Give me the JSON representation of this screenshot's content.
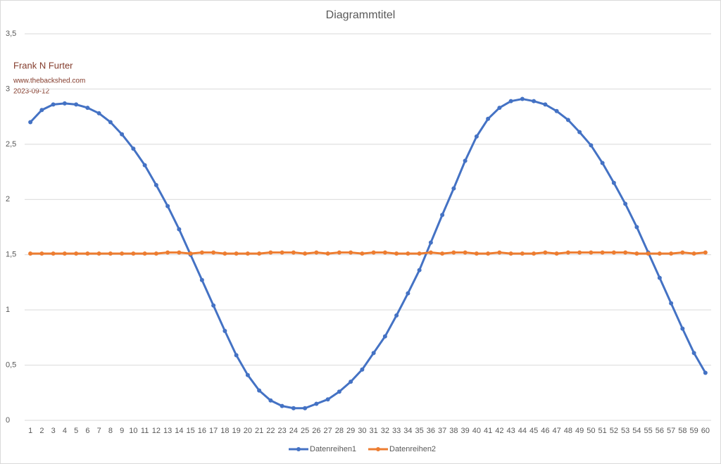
{
  "chart_data": {
    "type": "line",
    "title": "Diagrammtitel",
    "annotations": [
      "Frank N Furter",
      "www.thebackshed.com",
      "2023-09-12"
    ],
    "categories": [
      1,
      2,
      3,
      4,
      5,
      6,
      7,
      8,
      9,
      10,
      11,
      12,
      13,
      14,
      15,
      16,
      17,
      18,
      19,
      20,
      21,
      22,
      23,
      24,
      25,
      26,
      27,
      28,
      29,
      30,
      31,
      32,
      33,
      34,
      35,
      36,
      37,
      38,
      39,
      40,
      41,
      42,
      43,
      44,
      45,
      46,
      47,
      48,
      49,
      50,
      51,
      52,
      53,
      54,
      55,
      56,
      57,
      58,
      59,
      60
    ],
    "series": [
      {
        "name": "Datenreihen1",
        "color": "#4472c4",
        "values": [
          2.7,
          2.81,
          2.86,
          2.87,
          2.86,
          2.83,
          2.78,
          2.7,
          2.59,
          2.46,
          2.31,
          2.13,
          1.94,
          1.73,
          1.5,
          1.27,
          1.04,
          0.81,
          0.59,
          0.41,
          0.27,
          0.18,
          0.13,
          0.11,
          0.11,
          0.15,
          0.19,
          0.26,
          0.35,
          0.46,
          0.61,
          0.76,
          0.95,
          1.15,
          1.36,
          1.61,
          1.86,
          2.1,
          2.35,
          2.57,
          2.73,
          2.83,
          2.89,
          2.91,
          2.89,
          2.86,
          2.8,
          2.72,
          2.61,
          2.49,
          2.33,
          2.15,
          1.96,
          1.75,
          1.52,
          1.29,
          1.06,
          0.83,
          0.61,
          0.43
        ]
      },
      {
        "name": "Datenreihen2",
        "color": "#ed7d31",
        "values": [
          1.51,
          1.51,
          1.51,
          1.51,
          1.51,
          1.51,
          1.51,
          1.51,
          1.51,
          1.51,
          1.51,
          1.51,
          1.52,
          1.52,
          1.51,
          1.52,
          1.52,
          1.51,
          1.51,
          1.51,
          1.51,
          1.52,
          1.52,
          1.52,
          1.51,
          1.52,
          1.51,
          1.52,
          1.52,
          1.51,
          1.52,
          1.52,
          1.51,
          1.51,
          1.51,
          1.52,
          1.51,
          1.52,
          1.52,
          1.51,
          1.51,
          1.52,
          1.51,
          1.51,
          1.51,
          1.52,
          1.51,
          1.52,
          1.52,
          1.52,
          1.52,
          1.52,
          1.52,
          1.51,
          1.51,
          1.51,
          1.51,
          1.52,
          1.51,
          1.52
        ]
      }
    ],
    "ylim": [
      0,
      3.5
    ],
    "yticks": [
      0,
      {
        "value": 0.5,
        "label": "0,5"
      },
      1,
      {
        "value": 1.5,
        "label": "1,5"
      },
      2,
      {
        "value": 2.5,
        "label": "2,5"
      },
      3,
      {
        "value": 3.5,
        "label": "3,5"
      }
    ],
    "grid": true,
    "legend": "bottom"
  }
}
